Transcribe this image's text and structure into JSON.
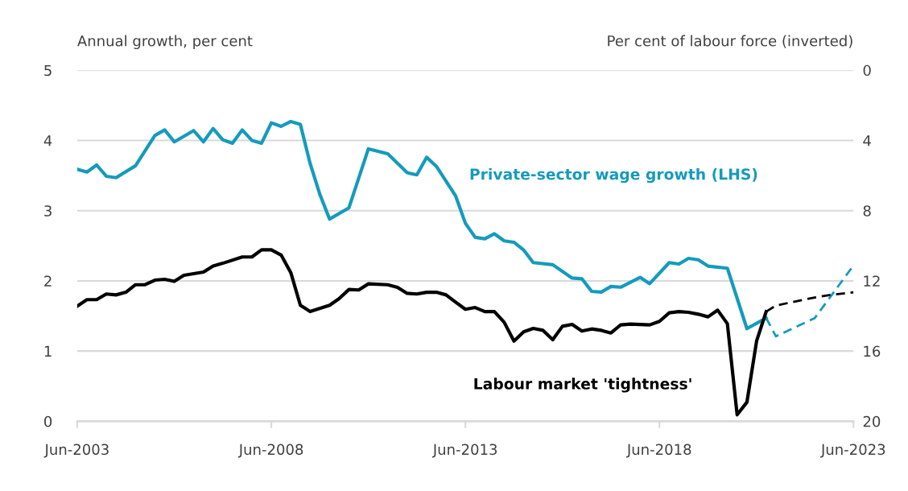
{
  "chart_data": {
    "type": "line",
    "ylabel": "Annual growth, per cent",
    "y2label": "Per cent of labour force (inverted)",
    "xlim": [
      "2003-06",
      "2023-06"
    ],
    "xticks": [
      {
        "value": "2003-06",
        "label": "Jun-2003"
      },
      {
        "value": "2008-06",
        "label": "Jun-2008"
      },
      {
        "value": "2013-06",
        "label": "Jun-2013"
      },
      {
        "value": "2018-06",
        "label": "Jun-2018"
      },
      {
        "value": "2023-06",
        "label": "Jun-2023"
      }
    ],
    "ylim": [
      0,
      5
    ],
    "yticks": [
      0,
      1,
      2,
      3,
      4,
      5
    ],
    "y2lim": [
      20,
      0
    ],
    "y2ticks": [
      0,
      4,
      8,
      12,
      16,
      20
    ],
    "grid": "y",
    "legend": false,
    "series": [
      {
        "name": "Private-sector wage growth (LHS)",
        "color": "#149bbd",
        "line_style": "solid",
        "x": [
          "2003-06",
          "2003-09",
          "2003-12",
          "2004-03",
          "2004-06",
          "2004-12",
          "2005-06",
          "2005-09",
          "2005-12",
          "2006-06",
          "2006-09",
          "2006-12",
          "2007-03",
          "2007-06",
          "2007-09",
          "2007-12",
          "2008-03",
          "2008-06",
          "2008-09",
          "2008-12",
          "2009-03",
          "2009-06",
          "2009-09",
          "2009-12",
          "2010-06",
          "2010-12",
          "2011-06",
          "2011-12",
          "2012-03",
          "2012-06",
          "2012-09",
          "2013-03",
          "2013-06",
          "2013-09",
          "2013-12",
          "2014-03",
          "2014-06",
          "2014-09",
          "2014-12",
          "2015-03",
          "2015-09",
          "2016-03",
          "2016-06",
          "2016-09",
          "2016-12",
          "2017-03",
          "2017-06",
          "2017-12",
          "2018-03",
          "2018-09",
          "2018-12",
          "2019-03",
          "2019-06",
          "2019-09",
          "2020-03",
          "2020-09",
          "2021-03"
        ],
        "values": [
          3.59,
          3.55,
          3.65,
          3.49,
          3.47,
          3.64,
          4.07,
          4.15,
          3.98,
          4.14,
          3.98,
          4.17,
          4.01,
          3.96,
          4.15,
          4.0,
          3.96,
          4.25,
          4.2,
          4.27,
          4.23,
          3.67,
          3.23,
          2.88,
          3.04,
          3.88,
          3.81,
          3.54,
          3.51,
          3.76,
          3.63,
          3.21,
          2.82,
          2.62,
          2.6,
          2.67,
          2.57,
          2.55,
          2.44,
          2.26,
          2.23,
          2.04,
          2.03,
          1.85,
          1.84,
          1.92,
          1.91,
          2.05,
          1.96,
          2.26,
          2.24,
          2.32,
          2.3,
          2.21,
          2.18,
          1.32,
          1.47
        ]
      },
      {
        "color": "#149bbd",
        "line_style": "dashed",
        "x": [
          "2021-03",
          "2021-06",
          "2022-06",
          "2023-06"
        ],
        "values": [
          1.47,
          1.21,
          1.47,
          2.22
        ]
      },
      {
        "name": "Labour market 'tightness'",
        "color": "#000000",
        "axis": "y2",
        "line_style": "solid",
        "x": [
          "2003-06",
          "2003-09",
          "2003-12",
          "2004-03",
          "2004-06",
          "2004-09",
          "2004-12",
          "2005-03",
          "2005-06",
          "2005-09",
          "2005-12",
          "2006-03",
          "2006-09",
          "2006-12",
          "2007-03",
          "2007-09",
          "2007-12",
          "2008-03",
          "2008-06",
          "2008-09",
          "2008-12",
          "2009-03",
          "2009-06",
          "2009-12",
          "2010-03",
          "2010-06",
          "2010-09",
          "2010-12",
          "2011-06",
          "2011-09",
          "2011-12",
          "2012-03",
          "2012-06",
          "2012-09",
          "2012-12",
          "2013-03",
          "2013-06",
          "2013-09",
          "2013-12",
          "2014-03",
          "2014-06",
          "2014-09",
          "2014-12",
          "2015-03",
          "2015-06",
          "2015-09",
          "2015-12",
          "2016-03",
          "2016-06",
          "2016-09",
          "2016-12",
          "2017-03",
          "2017-06",
          "2017-09",
          "2018-03",
          "2018-06",
          "2018-09",
          "2018-12",
          "2019-03",
          "2019-06",
          "2019-09",
          "2019-12",
          "2020-03",
          "2020-06",
          "2020-09",
          "2020-12",
          "2021-03"
        ],
        "values": [
          13.44,
          13.07,
          13.07,
          12.75,
          12.8,
          12.65,
          12.22,
          12.22,
          11.96,
          11.91,
          12.03,
          11.68,
          11.5,
          11.15,
          11.0,
          10.64,
          10.64,
          10.23,
          10.23,
          10.53,
          11.53,
          13.39,
          13.75,
          13.39,
          13.01,
          12.49,
          12.52,
          12.17,
          12.22,
          12.37,
          12.71,
          12.75,
          12.65,
          12.65,
          12.8,
          13.21,
          13.62,
          13.52,
          13.75,
          13.75,
          14.36,
          15.43,
          14.9,
          14.71,
          14.82,
          15.35,
          14.59,
          14.48,
          14.86,
          14.74,
          14.82,
          14.97,
          14.51,
          14.46,
          14.51,
          14.31,
          13.82,
          13.75,
          13.79,
          13.9,
          14.05,
          13.67,
          14.44,
          19.63,
          18.91,
          15.43,
          13.75
        ]
      },
      {
        "color": "#000000",
        "axis": "y2",
        "line_style": "dashed",
        "x": [
          "2021-03",
          "2021-06",
          "2021-11",
          "2022-06",
          "2022-11",
          "2023-06"
        ],
        "values": [
          13.75,
          13.41,
          13.21,
          12.95,
          12.8,
          12.65
        ]
      }
    ]
  }
}
